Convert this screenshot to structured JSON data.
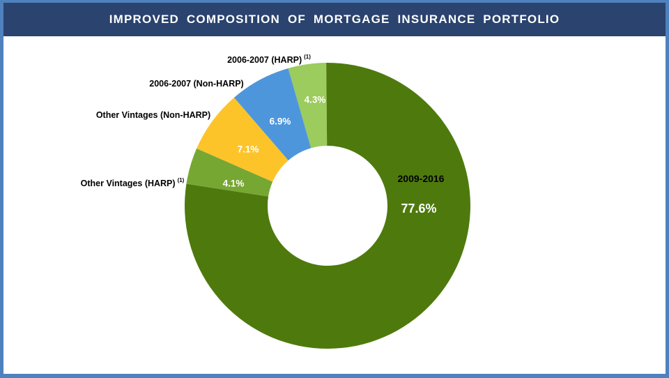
{
  "header": {
    "title": "IMPROVED COMPOSITION OF MORTGAGE INSURANCE PORTFOLIO"
  },
  "colors": {
    "frame": "#4E81BD",
    "header_bg": "#2A436F",
    "header_text": "#FFFFFF",
    "panel_bg": "#FFFFFF"
  },
  "chart_data": {
    "type": "pie",
    "subtype": "donut",
    "title": "Improved Composition of Mortgage Insurance Portfolio",
    "units": "percent",
    "legend_position": "none",
    "start_angle_deg": -16,
    "direction": "clockwise",
    "hole_ratio": 0.42,
    "categories": [
      "2006-2007 (HARP) (1)",
      "2009-2016",
      "Other Vintages (HARP) (1)",
      "Other Vintages (Non-HARP)",
      "2006-2007 (Non-HARP)"
    ],
    "values": [
      4.3,
      77.6,
      4.1,
      7.1,
      6.9
    ],
    "segments": [
      {
        "label": "2006-2007 (HARP)",
        "footnote": "(1)",
        "value": 4.3,
        "pct_label": "4.3%",
        "color": "#9CCB5E",
        "pct_label_color": "#FFFFFF",
        "pct_pos": [
          452,
          144
        ],
        "pct_size": 13.5,
        "cat_pos": [
          386,
          87
        ],
        "cat_color": "#000000",
        "cat_size": 12.5
      },
      {
        "label": "2009-2016",
        "footnote": "",
        "value": 77.6,
        "pct_label": "77.6%",
        "color": "#4E7A0D",
        "pct_label_color": "#FFFFFF",
        "pct_pos": [
          601,
          300
        ],
        "pct_size": 18,
        "cat_pos": [
          604,
          257
        ],
        "cat_color": "#000000",
        "cat_size": 14
      },
      {
        "label": "Other Vintages (HARP)",
        "footnote": "(1)",
        "value": 4.1,
        "pct_label": "4.1%",
        "color": "#77A733",
        "pct_label_color": "#FFFFFF",
        "pct_pos": [
          335,
          264
        ],
        "pct_size": 13.5,
        "cat_pos": [
          190,
          264
        ],
        "cat_color": "#000000",
        "cat_size": 12.5
      },
      {
        "label": "Other Vintages (Non-HARP)",
        "footnote": "",
        "value": 7.1,
        "pct_label": "7.1%",
        "color": "#FDC42A",
        "pct_label_color": "#FFFFFF",
        "pct_pos": [
          356,
          215
        ],
        "pct_size": 13.5,
        "cat_pos": [
          220,
          166
        ],
        "cat_color": "#000000",
        "cat_size": 12.5
      },
      {
        "label": "2006-2007 (Non-HARP)",
        "footnote": "",
        "value": 6.9,
        "pct_label": "6.9%",
        "color": "#4E96DB",
        "pct_label_color": "#FFFFFF",
        "pct_pos": [
          402,
          175
        ],
        "pct_size": 13.5,
        "cat_pos": [
          282,
          121
        ],
        "cat_color": "#000000",
        "cat_size": 12.5
      }
    ]
  }
}
